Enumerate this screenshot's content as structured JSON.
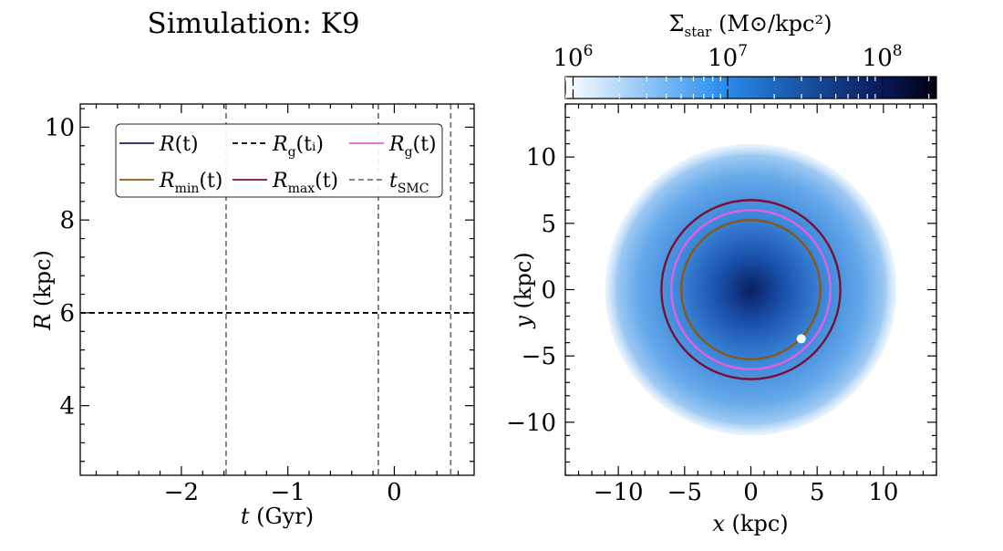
{
  "chart_data": [
    {
      "type": "line",
      "title": "Simulation: K9",
      "xlabel": "t (Gyr)",
      "ylabel": "R (kpc)",
      "xlim": [
        -2.95,
        0.75
      ],
      "ylim": [
        2.5,
        10.5
      ],
      "xticks": [
        -2,
        -1,
        0
      ],
      "xtick_labels": [
        "−2",
        "−1",
        "0"
      ],
      "yticks": [
        4,
        6,
        8,
        10
      ],
      "ytick_labels": [
        "4",
        "6",
        "8",
        "10"
      ],
      "legend_position": "top",
      "legend": [
        {
          "label": "R(t)",
          "main": "R",
          "sub": "",
          "tail": "(t)",
          "color": "#1a1a6e",
          "dash": "solid"
        },
        {
          "label": "Rg(ti)",
          "main": "R",
          "sub": "g",
          "tail": "(tᵢ)",
          "color": "#000000",
          "dash": "dashed"
        },
        {
          "label": "Rg(t)",
          "main": "R",
          "sub": "g",
          "tail": "(t)",
          "color": "#e060e0",
          "dash": "solid"
        },
        {
          "label": "Rmin(t)",
          "main": "R",
          "sub": "min",
          "tail": "(t)",
          "color": "#8b5a12",
          "dash": "solid"
        },
        {
          "label": "Rmax(t)",
          "main": "R",
          "sub": "max",
          "tail": "(t)",
          "color": "#7a1030",
          "dash": "solid"
        },
        {
          "label": "tSMC",
          "main": "t",
          "sub": "SMC",
          "tail": "",
          "color": "#777777",
          "dash": "dashed"
        }
      ],
      "hlines": [
        {
          "name": "Rg(ti)",
          "y": 6.0,
          "color": "#000000"
        }
      ],
      "vlines": [
        {
          "name": "tSMC",
          "x": -1.58,
          "color": "#777777"
        },
        {
          "name": "tSMC",
          "x": -0.15,
          "color": "#777777"
        },
        {
          "name": "tSMC",
          "x": 0.53,
          "color": "#777777"
        }
      ]
    },
    {
      "type": "heatmap",
      "title": "",
      "xlabel": "x (kpc)",
      "ylabel": "y (kpc)",
      "xlim": [
        -14,
        14
      ],
      "ylim": [
        -14,
        14
      ],
      "xticks": [
        -10,
        -5,
        0,
        5,
        10
      ],
      "xtick_labels": [
        "−10",
        "−5",
        "0",
        "5",
        "10"
      ],
      "yticks": [
        -10,
        -5,
        0,
        5,
        10
      ],
      "ytick_labels": [
        "−10",
        "−5",
        "0",
        "5",
        "10"
      ],
      "colorbar": {
        "label_main": "Σ",
        "label_sub": "star",
        "label_units": " (M⊙/kpc²)",
        "scale": "log",
        "range_exp": [
          5.95,
          8.35
        ],
        "major_exps": [
          6,
          7,
          8
        ],
        "tick_labels": [
          "10",
          "10",
          "10"
        ],
        "tick_sups": [
          "6",
          "7",
          "8"
        ],
        "colors": [
          "#ffffff",
          "#2a8ff0",
          "#0a1a5a",
          "#000010"
        ]
      },
      "disk": {
        "outer_radius_kpc": 11.0,
        "center": [
          0,
          0
        ]
      },
      "circles": [
        {
          "name": "Rmax",
          "radius_kpc": 6.75,
          "color": "#7a1030"
        },
        {
          "name": "Rg",
          "radius_kpc": 6.0,
          "color": "#e060e0"
        },
        {
          "name": "Rmin",
          "radius_kpc": 5.25,
          "color": "#8b5a12"
        }
      ],
      "marker": {
        "name": "star-particle",
        "x": 3.8,
        "y": -3.7,
        "color": "#ffffff"
      }
    }
  ]
}
